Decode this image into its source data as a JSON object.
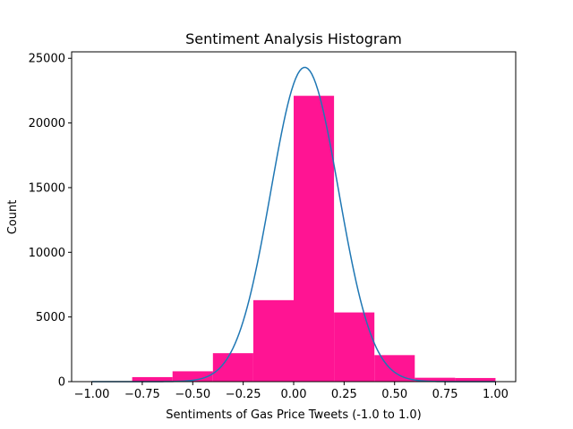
{
  "chart_data": {
    "type": "bar",
    "title": "Sentiment Analysis Histogram",
    "xlabel": "Sentiments of Gas Price Tweets (-1.0 to 1.0)",
    "ylabel": "Count",
    "xlim": [
      -1.1,
      1.1
    ],
    "ylim": [
      0,
      25500
    ],
    "xticks": [
      -1.0,
      -0.75,
      -0.5,
      -0.25,
      0.0,
      0.25,
      0.5,
      0.75,
      1.0
    ],
    "xtick_labels": [
      "−1.00",
      "−0.75",
      "−0.50",
      "−0.25",
      "0.00",
      "0.25",
      "0.50",
      "0.75",
      "1.00"
    ],
    "yticks": [
      0,
      5000,
      10000,
      15000,
      20000,
      25000
    ],
    "ytick_labels": [
      "0",
      "5000",
      "10000",
      "15000",
      "20000",
      "25000"
    ],
    "bins": [
      {
        "x0": -1.0,
        "x1": -0.8,
        "count": 30
      },
      {
        "x0": -0.8,
        "x1": -0.6,
        "count": 350
      },
      {
        "x0": -0.6,
        "x1": -0.4,
        "count": 800
      },
      {
        "x0": -0.4,
        "x1": -0.2,
        "count": 2200
      },
      {
        "x0": -0.2,
        "x1": 0.0,
        "count": 6300
      },
      {
        "x0": 0.0,
        "x1": 0.2,
        "count": 22100
      },
      {
        "x0": 0.2,
        "x1": 0.4,
        "count": 5350
      },
      {
        "x0": 0.4,
        "x1": 0.6,
        "count": 2050
      },
      {
        "x0": 0.6,
        "x1": 0.8,
        "count": 300
      },
      {
        "x0": 0.8,
        "x1": 1.0,
        "count": 280
      }
    ],
    "bar_color": "#ff1493",
    "curve": {
      "type": "normal-fit",
      "mean": 0.055,
      "std": 0.168,
      "peak": 24300,
      "x_range": [
        -1.0,
        1.0
      ],
      "color": "#1f77b4"
    },
    "grid": false,
    "legend": "none"
  }
}
